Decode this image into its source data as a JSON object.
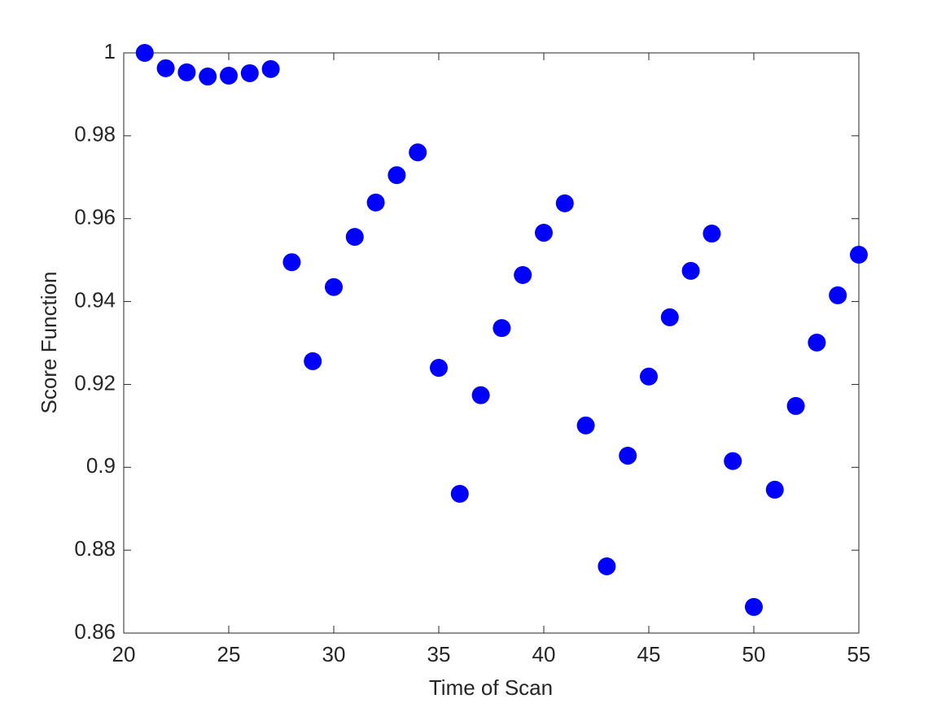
{
  "chart_data": {
    "type": "scatter",
    "x_label": "Time of Scan",
    "y_label": "Score Function",
    "x": [
      21,
      22,
      23,
      24,
      25,
      26,
      27,
      28,
      29,
      30,
      31,
      32,
      33,
      34,
      35,
      36,
      37,
      38,
      39,
      40,
      41,
      42,
      43,
      44,
      45,
      46,
      47,
      48,
      49,
      50,
      51,
      52,
      53,
      54,
      55
    ],
    "values": [
      1.0,
      0.9963,
      0.9953,
      0.9943,
      0.9945,
      0.9951,
      0.9961,
      0.9495,
      0.9256,
      0.9435,
      0.9556,
      0.9639,
      0.9705,
      0.976,
      0.924,
      0.8936,
      0.9174,
      0.9336,
      0.9464,
      0.9566,
      0.9637,
      0.9101,
      0.8761,
      0.9028,
      0.9219,
      0.9362,
      0.9474,
      0.9564,
      0.9015,
      0.8663,
      0.8946,
      0.9148,
      0.9301,
      0.9415,
      0.9513
    ],
    "color": "#0000ff",
    "xlim": [
      20,
      55
    ],
    "xticks": [
      20,
      25,
      30,
      35,
      40,
      45,
      50,
      55
    ],
    "ylim": [
      0.86,
      1
    ],
    "yticks": [
      0.86,
      0.88,
      0.9,
      0.92,
      0.94,
      0.96,
      0.98,
      1
    ],
    "grid": false
  }
}
